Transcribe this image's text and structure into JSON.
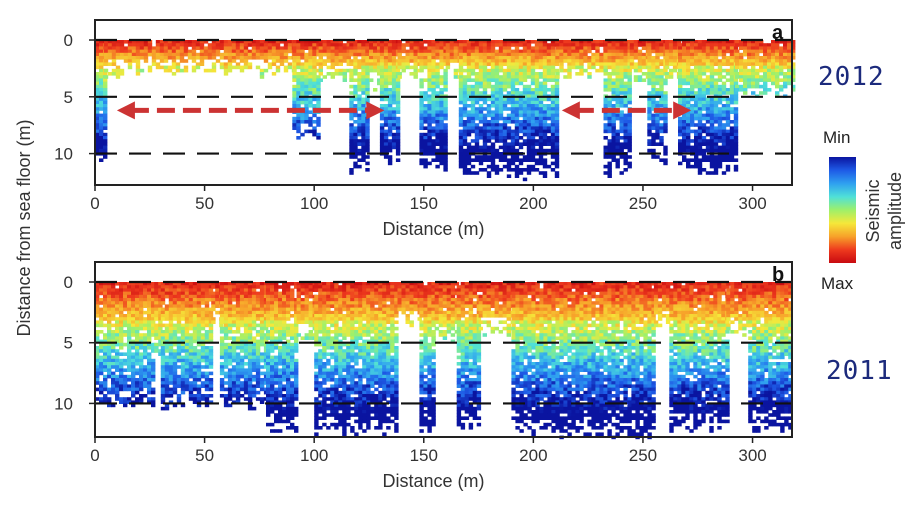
{
  "chart_data": [
    {
      "type": "heatmap",
      "panel_label": "a",
      "year": "2012",
      "xlabel": "Distance (m)",
      "ylabel": "Distance from sea floor (m)",
      "xlim": [
        0,
        318
      ],
      "ylim": [
        0,
        12.7
      ],
      "y_inverted": true,
      "xticks": [
        0,
        50,
        100,
        150,
        200,
        250,
        300
      ],
      "yticks": [
        0,
        5,
        10
      ],
      "dashed_reference_depths": [
        0,
        5,
        10
      ],
      "arrows": [
        {
          "from_x": 10,
          "to_x": 132,
          "depth": 6.2,
          "direction": "both",
          "color": "#cc3333"
        },
        {
          "from_x": 213,
          "to_x": 272,
          "depth": 6.2,
          "direction": "both",
          "color": "#cc3333"
        }
      ],
      "surface_strong_layer_depth_m": [
        0,
        2
      ],
      "columns": [
        {
          "x_start": 0,
          "x_end": 4,
          "depth_m": 10.5
        },
        {
          "x_start": 4,
          "x_end": 90,
          "depth_m": 2.8
        },
        {
          "x_start": 90,
          "x_end": 102,
          "depth_m": 8.5
        },
        {
          "x_start": 102,
          "x_end": 116,
          "depth_m": 3.3
        },
        {
          "x_start": 116,
          "x_end": 125,
          "depth_m": 11.5
        },
        {
          "x_start": 125,
          "x_end": 130,
          "depth_m": 4.0
        },
        {
          "x_start": 130,
          "x_end": 138,
          "depth_m": 10.5
        },
        {
          "x_start": 138,
          "x_end": 148,
          "depth_m": 3.0
        },
        {
          "x_start": 148,
          "x_end": 160,
          "depth_m": 11.2
        },
        {
          "x_start": 160,
          "x_end": 166,
          "depth_m": 3.0
        },
        {
          "x_start": 166,
          "x_end": 210,
          "depth_m": 11.8
        },
        {
          "x_start": 210,
          "x_end": 232,
          "depth_m": 3.0
        },
        {
          "x_start": 232,
          "x_end": 244,
          "depth_m": 11.6
        },
        {
          "x_start": 244,
          "x_end": 252,
          "depth_m": 3.5
        },
        {
          "x_start": 252,
          "x_end": 260,
          "depth_m": 10.4
        },
        {
          "x_start": 260,
          "x_end": 266,
          "depth_m": 3.2
        },
        {
          "x_start": 266,
          "x_end": 275,
          "depth_m": 10.8
        },
        {
          "x_start": 275,
          "x_end": 292,
          "depth_m": 11.8
        },
        {
          "x_start": 292,
          "x_end": 318,
          "depth_m": 4.8
        }
      ]
    },
    {
      "type": "heatmap",
      "panel_label": "b",
      "year": "2011",
      "xlabel": "Distance (m)",
      "ylabel": "Distance from sea floor (m)",
      "xlim": [
        0,
        318
      ],
      "ylim": [
        0,
        12.7
      ],
      "y_inverted": true,
      "xticks": [
        0,
        50,
        100,
        150,
        200,
        250,
        300
      ],
      "yticks": [
        0,
        5,
        10
      ],
      "dashed_reference_depths": [
        0,
        5,
        10
      ],
      "surface_strong_layer_depth_m": [
        0,
        3
      ],
      "columns": [
        {
          "x_start": 0,
          "x_end": 27,
          "depth_m": 10.0
        },
        {
          "x_start": 27,
          "x_end": 30,
          "depth_m": 6.0
        },
        {
          "x_start": 30,
          "x_end": 53,
          "depth_m": 10.0
        },
        {
          "x_start": 53,
          "x_end": 57,
          "depth_m": 3.5
        },
        {
          "x_start": 57,
          "x_end": 78,
          "depth_m": 10.0
        },
        {
          "x_start": 78,
          "x_end": 92,
          "depth_m": 12.3
        },
        {
          "x_start": 92,
          "x_end": 100,
          "depth_m": 4.5
        },
        {
          "x_start": 100,
          "x_end": 138,
          "depth_m": 12.4
        },
        {
          "x_start": 138,
          "x_end": 148,
          "depth_m": 3.5
        },
        {
          "x_start": 148,
          "x_end": 155,
          "depth_m": 12.2
        },
        {
          "x_start": 155,
          "x_end": 165,
          "depth_m": 4.5
        },
        {
          "x_start": 165,
          "x_end": 175,
          "depth_m": 12.0
        },
        {
          "x_start": 175,
          "x_end": 190,
          "depth_m": 4.0
        },
        {
          "x_start": 190,
          "x_end": 255,
          "depth_m": 12.4
        },
        {
          "x_start": 255,
          "x_end": 262,
          "depth_m": 3.5
        },
        {
          "x_start": 262,
          "x_end": 288,
          "depth_m": 12.0
        },
        {
          "x_start": 288,
          "x_end": 298,
          "depth_m": 4.0
        },
        {
          "x_start": 298,
          "x_end": 318,
          "depth_m": 12.0
        }
      ]
    }
  ],
  "colorbar": {
    "title": "Seismic amplitude",
    "min_label": "Min",
    "max_label": "Max",
    "colors_from_min_to_max": [
      "#0a14a0",
      "#1e5ae6",
      "#2fa0f0",
      "#4fe0d8",
      "#9ef06a",
      "#f5e83a",
      "#f7a22a",
      "#ee3a1e",
      "#c80a10"
    ]
  }
}
